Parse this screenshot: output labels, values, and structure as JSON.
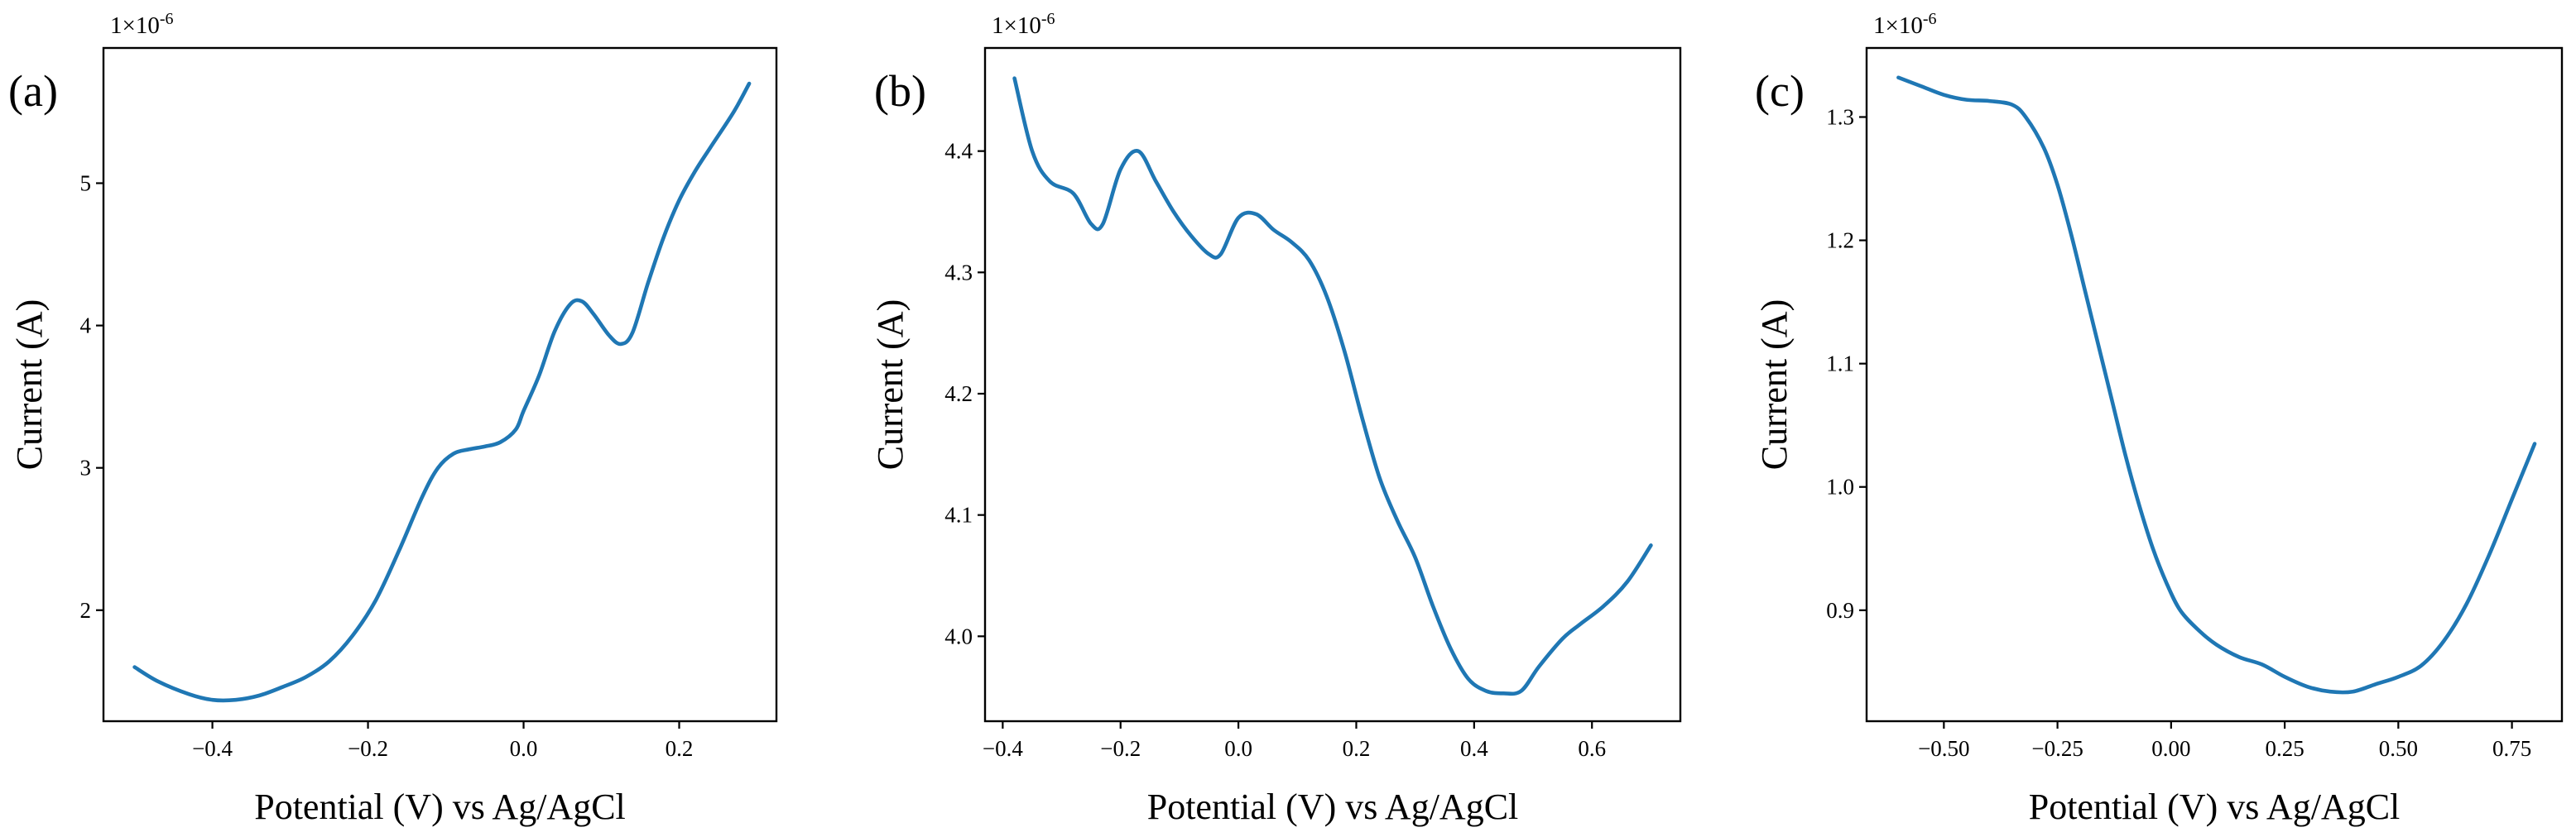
{
  "chart_data": [
    {
      "type": "line",
      "panel_label": "(a)",
      "offset_label": "1×10",
      "offset_exponent": "-6",
      "xlabel": "Potential (V) vs Ag/AgCl",
      "ylabel": "Current (A)",
      "xlim": [
        -0.54,
        0.325
      ],
      "ylim": [
        1.22,
        5.95
      ],
      "xticks": [
        -0.4,
        -0.2,
        0.0,
        0.2
      ],
      "xtick_labels": [
        "−0.4",
        "−0.2",
        "0.0",
        "0.2"
      ],
      "yticks": [
        2,
        3,
        4,
        5
      ],
      "ytick_labels": [
        "2",
        "3",
        "4",
        "5"
      ],
      "series": [
        {
          "name": "Current",
          "color": "#1f77b4",
          "x": [
            -0.5,
            -0.47,
            -0.43,
            -0.4,
            -0.37,
            -0.34,
            -0.31,
            -0.28,
            -0.25,
            -0.22,
            -0.19,
            -0.16,
            -0.13,
            -0.11,
            -0.09,
            -0.07,
            -0.05,
            -0.03,
            -0.01,
            0.0,
            0.02,
            0.04,
            0.06,
            0.075,
            0.09,
            0.11,
            0.125,
            0.14,
            0.16,
            0.18,
            0.2,
            0.22,
            0.24,
            0.27,
            0.29
          ],
          "y": [
            1.6,
            1.5,
            1.41,
            1.37,
            1.37,
            1.4,
            1.46,
            1.53,
            1.64,
            1.82,
            2.07,
            2.42,
            2.8,
            3.0,
            3.1,
            3.13,
            3.15,
            3.18,
            3.27,
            3.4,
            3.65,
            3.96,
            4.15,
            4.17,
            4.08,
            3.93,
            3.87,
            3.95,
            4.3,
            4.62,
            4.88,
            5.08,
            5.25,
            5.5,
            5.7
          ]
        }
      ]
    },
    {
      "type": "line",
      "panel_label": "(b)",
      "offset_label": "1×10",
      "offset_exponent": "-6",
      "xlabel": "Potential (V) vs Ag/AgCl",
      "ylabel": "Current (A)",
      "xlim": [
        -0.43,
        0.75
      ],
      "ylim": [
        3.93,
        4.485
      ],
      "xticks": [
        -0.4,
        -0.2,
        0.0,
        0.2,
        0.4,
        0.6
      ],
      "xtick_labels": [
        "−0.4",
        "−0.2",
        "0.0",
        "0.2",
        "0.4",
        "0.6"
      ],
      "yticks": [
        4.0,
        4.1,
        4.2,
        4.3,
        4.4
      ],
      "ytick_labels": [
        "4.0",
        "4.1",
        "4.2",
        "4.3",
        "4.4"
      ],
      "series": [
        {
          "name": "Current",
          "color": "#1f77b4",
          "x": [
            -0.38,
            -0.35,
            -0.32,
            -0.28,
            -0.25,
            -0.23,
            -0.2,
            -0.17,
            -0.14,
            -0.11,
            -0.08,
            -0.05,
            -0.03,
            0.0,
            0.03,
            0.06,
            0.09,
            0.12,
            0.15,
            0.18,
            0.21,
            0.24,
            0.27,
            0.3,
            0.33,
            0.36,
            0.39,
            0.42,
            0.45,
            0.48,
            0.51,
            0.55,
            0.58,
            0.62,
            0.66,
            0.7
          ],
          "y": [
            4.46,
            4.4,
            4.375,
            4.365,
            4.34,
            4.34,
            4.385,
            4.4,
            4.375,
            4.35,
            4.33,
            4.315,
            4.315,
            4.345,
            4.348,
            4.335,
            4.325,
            4.31,
            4.28,
            4.235,
            4.18,
            4.13,
            4.095,
            4.065,
            4.025,
            3.99,
            3.965,
            3.955,
            3.953,
            3.955,
            3.975,
            3.998,
            4.01,
            4.025,
            4.045,
            4.075
          ]
        }
      ]
    },
    {
      "type": "line",
      "panel_label": "(c)",
      "offset_label": "1×10",
      "offset_exponent": "-6",
      "xlabel": "Potential (V) vs Ag/AgCl",
      "ylabel": "Current (A)",
      "xlim": [
        -0.67,
        0.86
      ],
      "ylim": [
        0.81,
        1.356
      ],
      "xticks": [
        -0.5,
        -0.25,
        0.0,
        0.25,
        0.5,
        0.75
      ],
      "xtick_labels": [
        "−0.50",
        "−0.25",
        "0.00",
        "0.25",
        "0.50",
        "0.75"
      ],
      "yticks": [
        0.9,
        1.0,
        1.1,
        1.2,
        1.3
      ],
      "ytick_labels": [
        "0.9",
        "1.0",
        "1.1",
        "1.2",
        "1.3"
      ],
      "series": [
        {
          "name": "Current",
          "color": "#1f77b4",
          "x": [
            -0.6,
            -0.55,
            -0.5,
            -0.45,
            -0.4,
            -0.35,
            -0.32,
            -0.28,
            -0.25,
            -0.22,
            -0.19,
            -0.16,
            -0.13,
            -0.1,
            -0.07,
            -0.04,
            -0.01,
            0.02,
            0.06,
            0.1,
            0.15,
            0.2,
            0.25,
            0.3,
            0.35,
            0.4,
            0.45,
            0.5,
            0.55,
            0.6,
            0.65,
            0.7,
            0.75,
            0.8
          ],
          "y": [
            1.332,
            1.325,
            1.318,
            1.314,
            1.313,
            1.31,
            1.3,
            1.275,
            1.245,
            1.205,
            1.16,
            1.115,
            1.07,
            1.025,
            0.985,
            0.95,
            0.922,
            0.9,
            0.884,
            0.872,
            0.862,
            0.856,
            0.846,
            0.838,
            0.834,
            0.834,
            0.84,
            0.846,
            0.855,
            0.875,
            0.905,
            0.945,
            0.99,
            1.035
          ]
        }
      ]
    }
  ]
}
